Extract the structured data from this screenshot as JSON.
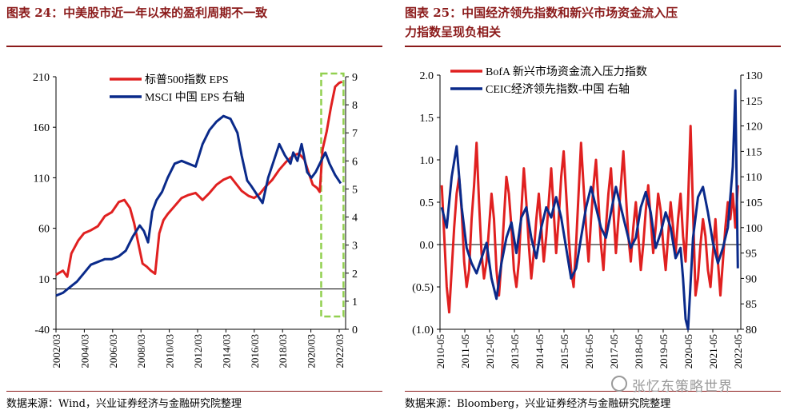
{
  "left": {
    "title_line1": "图表 24：中美股市近一年以来的盈利周期不一致",
    "source": "数据来源：Wind，兴业证券经济与金融研究院整理"
  },
  "right": {
    "title_line1": "图表 25：中国经济领先指数和新兴市场资金流入压",
    "title_line2": "力指数呈现负相关",
    "source": "数据来源：Bloomberg，兴业证券经济与金融研究院整理"
  },
  "watermark": "张忆东策略世界",
  "chart_data": [
    {
      "type": "line",
      "title": "",
      "x_ticks": [
        "2002/03",
        "2004/03",
        "2006/03",
        "2008/03",
        "2010/03",
        "2012/03",
        "2014/03",
        "2016/03",
        "2018/03",
        "2020/03",
        "2022/03"
      ],
      "x_range": [
        2002.0,
        2022.75
      ],
      "y_left": {
        "ticks": [
          "210",
          "160",
          "110",
          "60",
          "10",
          "-40"
        ],
        "range": [
          -40,
          210
        ]
      },
      "y_right": {
        "ticks": [
          "9",
          "8",
          "7",
          "6",
          "5",
          "4",
          "3",
          "2",
          "1",
          "0"
        ],
        "range": [
          0,
          9
        ]
      },
      "legend": "top-center",
      "highlight_box": {
        "x_from": 2021.0,
        "x_to": 2022.6,
        "color": "#92d050"
      },
      "series": [
        {
          "name": "标普500指数 EPS",
          "axis": "left",
          "color": "#e02020",
          "x": [
            2002.0,
            2002.5,
            2002.8,
            2003.1,
            2003.6,
            2004.0,
            2004.5,
            2005.0,
            2005.5,
            2006.0,
            2006.5,
            2006.9,
            2007.3,
            2007.6,
            2007.9,
            2008.2,
            2008.5,
            2008.8,
            2009.1,
            2009.4,
            2009.7,
            2010.0,
            2010.5,
            2011.0,
            2011.5,
            2012.0,
            2012.5,
            2013.0,
            2013.5,
            2014.0,
            2014.5,
            2014.9,
            2015.3,
            2015.8,
            2016.2,
            2016.6,
            2017.0,
            2017.5,
            2018.0,
            2018.5,
            2019.0,
            2019.4,
            2019.8,
            2020.1,
            2020.4,
            2020.7,
            2020.9,
            2021.1,
            2021.4,
            2021.7,
            2022.0,
            2022.3,
            2022.5
          ],
          "y": [
            14,
            18,
            12,
            35,
            48,
            55,
            58,
            62,
            72,
            76,
            86,
            88,
            80,
            65,
            45,
            25,
            22,
            18,
            15,
            55,
            68,
            74,
            82,
            90,
            93,
            95,
            88,
            95,
            103,
            108,
            111,
            104,
            97,
            92,
            90,
            94,
            101,
            108,
            118,
            126,
            132,
            134,
            128,
            115,
            103,
            100,
            96,
            138,
            156,
            180,
            200,
            204,
            205
          ]
        },
        {
          "name": "MSCI 中国 EPS 右轴",
          "axis": "right",
          "color": "#0a2a8a",
          "x": [
            2002.0,
            2002.5,
            2003.0,
            2003.5,
            2004.0,
            2004.5,
            2005.0,
            2005.5,
            2006.0,
            2006.5,
            2007.0,
            2007.5,
            2008.0,
            2008.3,
            2008.6,
            2008.9,
            2009.2,
            2009.6,
            2010.0,
            2010.5,
            2011.0,
            2011.5,
            2012.0,
            2012.5,
            2013.0,
            2013.5,
            2014.0,
            2014.5,
            2015.0,
            2015.3,
            2015.7,
            2016.0,
            2016.4,
            2016.8,
            2017.2,
            2017.6,
            2018.0,
            2018.4,
            2018.8,
            2019.0,
            2019.3,
            2019.6,
            2020.0,
            2020.3,
            2020.6,
            2021.0,
            2021.3,
            2021.6,
            2022.0,
            2022.4
          ],
          "y": [
            1.2,
            1.3,
            1.5,
            1.7,
            2.0,
            2.3,
            2.4,
            2.5,
            2.5,
            2.6,
            2.8,
            3.3,
            3.7,
            3.5,
            3.1,
            4.2,
            4.6,
            4.9,
            5.4,
            5.9,
            6.0,
            5.9,
            5.8,
            6.6,
            7.1,
            7.4,
            7.6,
            7.5,
            7.0,
            6.2,
            5.3,
            5.1,
            4.8,
            4.5,
            5.4,
            6.0,
            6.6,
            6.2,
            5.9,
            6.3,
            6.0,
            6.6,
            5.6,
            5.4,
            5.6,
            6.0,
            6.3,
            5.9,
            5.5,
            5.2
          ]
        }
      ]
    },
    {
      "type": "line",
      "title": "",
      "x_ticks": [
        "2010-05",
        "2011-05",
        "2012-05",
        "2013-05",
        "2014-05",
        "2015-05",
        "2016-05",
        "2017-05",
        "2018-05",
        "2019-05",
        "2020-05",
        "2021-05",
        "2022-05"
      ],
      "x_range": [
        2010.33,
        2022.42
      ],
      "y_left": {
        "ticks": [
          "2.0",
          "1.5",
          "1.0",
          "0.5",
          "0.0",
          "(0.5)",
          "(1.0)"
        ],
        "range": [
          -1.0,
          2.0
        ]
      },
      "y_right": {
        "ticks": [
          "130",
          "125",
          "120",
          "115",
          "110",
          "105",
          "100",
          "95",
          "90",
          "85",
          "80"
        ],
        "range": [
          80,
          130
        ]
      },
      "legend": "top-left",
      "series": [
        {
          "name": "BofA 新兴市场资金流入压力指数",
          "axis": "left",
          "color": "#e02020",
          "x": [
            2010.4,
            2010.5,
            2010.6,
            2010.7,
            2010.8,
            2010.9,
            2011.0,
            2011.1,
            2011.2,
            2011.3,
            2011.4,
            2011.5,
            2011.6,
            2011.7,
            2011.8,
            2011.9,
            2012.0,
            2012.1,
            2012.2,
            2012.3,
            2012.4,
            2012.5,
            2012.6,
            2012.7,
            2012.8,
            2012.9,
            2013.0,
            2013.1,
            2013.2,
            2013.3,
            2013.4,
            2013.5,
            2013.6,
            2013.7,
            2013.8,
            2013.9,
            2014.0,
            2014.1,
            2014.2,
            2014.3,
            2014.4,
            2014.5,
            2014.6,
            2014.7,
            2014.8,
            2014.9,
            2015.0,
            2015.1,
            2015.2,
            2015.3,
            2015.4,
            2015.5,
            2015.6,
            2015.7,
            2015.8,
            2015.9,
            2016.0,
            2016.1,
            2016.2,
            2016.3,
            2016.4,
            2016.5,
            2016.6,
            2016.7,
            2016.8,
            2016.9,
            2017.0,
            2017.1,
            2017.2,
            2017.3,
            2017.4,
            2017.5,
            2017.6,
            2017.7,
            2017.8,
            2017.9,
            2018.0,
            2018.1,
            2018.2,
            2018.3,
            2018.4,
            2018.5,
            2018.6,
            2018.7,
            2018.8,
            2018.9,
            2019.0,
            2019.1,
            2019.2,
            2019.3,
            2019.4,
            2019.5,
            2019.6,
            2019.7,
            2019.8,
            2019.9,
            2020.0,
            2020.1,
            2020.2,
            2020.3,
            2020.4,
            2020.5,
            2020.6,
            2020.7,
            2020.8,
            2020.9,
            2021.0,
            2021.1,
            2021.2,
            2021.3,
            2021.4,
            2021.5,
            2021.6,
            2021.7,
            2021.8,
            2021.9,
            2022.0,
            2022.1,
            2022.2,
            2022.3
          ],
          "y": [
            0.7,
            0.1,
            -0.5,
            -0.8,
            -0.3,
            0.2,
            0.6,
            0.8,
            0.4,
            -0.2,
            -0.5,
            -0.3,
            0.3,
            0.7,
            1.2,
            0.5,
            -0.1,
            -0.4,
            -0.2,
            0.2,
            0.6,
            0.3,
            -0.3,
            -0.6,
            -0.2,
            0.3,
            0.8,
            0.6,
            0.2,
            -0.3,
            -0.5,
            -0.2,
            0.4,
            0.9,
            0.5,
            0.0,
            -0.4,
            -0.1,
            0.3,
            0.6,
            0.2,
            -0.2,
            0.1,
            0.5,
            0.9,
            0.4,
            -0.1,
            0.3,
            0.8,
            1.1,
            0.6,
            0.1,
            -0.3,
            -0.5,
            0.0,
            0.6,
            1.2,
            0.7,
            0.2,
            -0.2,
            0.3,
            0.7,
            1.0,
            0.5,
            0.0,
            -0.3,
            0.2,
            0.6,
            0.9,
            0.4,
            -0.1,
            0.3,
            0.7,
            1.1,
            0.6,
            0.1,
            -0.2,
            0.2,
            0.5,
            0.1,
            -0.3,
            0.0,
            0.4,
            0.7,
            0.3,
            -0.1,
            0.2,
            0.6,
            0.4,
            0.0,
            -0.3,
            0.1,
            0.5,
            0.2,
            -0.1,
            0.3,
            0.6,
            0.1,
            -0.2,
            0.5,
            1.4,
            0.4,
            -0.6,
            -0.4,
            0.0,
            0.3,
            0.1,
            -0.3,
            -0.5,
            -0.1,
            0.3,
            -0.2,
            -0.6,
            -0.2,
            0.2,
            0.5,
            0.3,
            0.6,
            0.2,
            0.7
          ]
        },
        {
          "name": "CEIC经济领先指数-中国 右轴",
          "axis": "right",
          "color": "#0a2a8a",
          "x": [
            2010.4,
            2010.6,
            2010.8,
            2011.0,
            2011.2,
            2011.4,
            2011.6,
            2011.8,
            2012.0,
            2012.2,
            2012.4,
            2012.6,
            2012.8,
            2013.0,
            2013.2,
            2013.4,
            2013.6,
            2013.8,
            2014.0,
            2014.2,
            2014.4,
            2014.6,
            2014.8,
            2015.0,
            2015.2,
            2015.4,
            2015.6,
            2015.8,
            2016.0,
            2016.2,
            2016.4,
            2016.6,
            2016.8,
            2017.0,
            2017.2,
            2017.4,
            2017.6,
            2017.8,
            2018.0,
            2018.2,
            2018.4,
            2018.6,
            2018.8,
            2019.0,
            2019.2,
            2019.4,
            2019.6,
            2019.8,
            2020.0,
            2020.1,
            2020.2,
            2020.3,
            2020.5,
            2020.7,
            2020.9,
            2021.1,
            2021.3,
            2021.5,
            2021.7,
            2021.9,
            2022.0,
            2022.1,
            2022.2,
            2022.3
          ],
          "y": [
            104,
            100,
            110,
            116,
            104,
            96,
            93,
            91,
            94,
            97,
            90,
            86,
            93,
            98,
            101,
            95,
            102,
            104,
            98,
            94,
            100,
            104,
            102,
            106,
            102,
            96,
            90,
            92,
            98,
            104,
            108,
            104,
            100,
            98,
            103,
            108,
            104,
            100,
            96,
            98,
            104,
            107,
            103,
            96,
            99,
            103,
            100,
            94,
            96,
            90,
            82,
            78,
            98,
            106,
            108,
            103,
            97,
            93,
            96,
            100,
            106,
            112,
            127,
            92
          ]
        }
      ]
    }
  ]
}
